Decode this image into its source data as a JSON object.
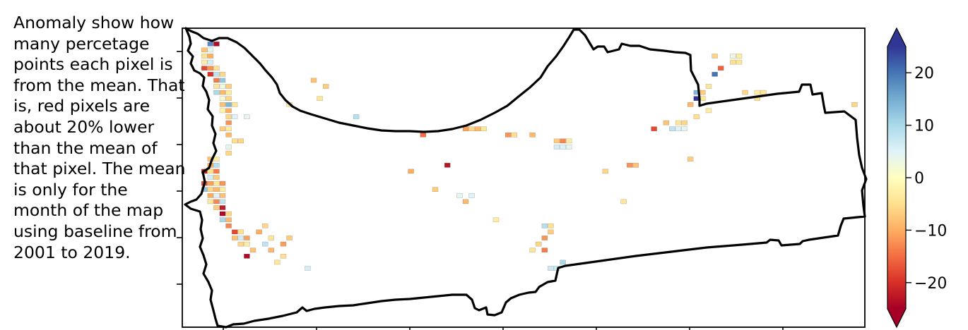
{
  "caption": "Anomaly show how many percetage points each pixel is from the mean. That is, red pixels are about 20% lower than the mean of that pixel. The mean is only for the month of the map using baseline from 2001 to 2019.",
  "chart_data": {
    "type": "heatmap",
    "title": "",
    "colormap": "RdYlBu",
    "colorbar": {
      "vmin": -25,
      "vmax": 25,
      "extend": "both",
      "ticks": [
        -20,
        -10,
        0,
        10,
        20
      ],
      "tick_labels": [
        "−20",
        "−10",
        "0",
        "10",
        "20"
      ]
    },
    "colors": {
      "boundary": "#000000",
      "low": "#a50026",
      "mid": "#ffffbf",
      "high": "#313695"
    },
    "x_ticks_count": 7,
    "y_ticks_count": 6,
    "anomaly_pixels": [
      {
        "col": 3,
        "row": 2,
        "value": 18
      },
      {
        "col": 4,
        "row": 2,
        "value": -24
      },
      {
        "col": 2,
        "row": 3,
        "value": -8
      },
      {
        "col": 3,
        "row": 3,
        "value": 4
      },
      {
        "col": 2,
        "row": 4,
        "value": -5
      },
      {
        "col": 3,
        "row": 4,
        "value": -10
      },
      {
        "col": 2,
        "row": 5,
        "value": -3
      },
      {
        "col": 3,
        "row": 5,
        "value": 6
      },
      {
        "col": 2,
        "row": 6,
        "value": -18
      },
      {
        "col": 3,
        "row": 6,
        "value": -12
      },
      {
        "col": 4,
        "row": 6,
        "value": -5
      },
      {
        "col": 3,
        "row": 7,
        "value": -20
      },
      {
        "col": 4,
        "row": 7,
        "value": 8
      },
      {
        "col": 5,
        "row": 7,
        "value": -6
      },
      {
        "col": 4,
        "row": 8,
        "value": -14
      },
      {
        "col": 5,
        "row": 8,
        "value": 12
      },
      {
        "col": 4,
        "row": 9,
        "value": -4
      },
      {
        "col": 5,
        "row": 9,
        "value": 3
      },
      {
        "col": 6,
        "row": 9,
        "value": -7
      },
      {
        "col": 4,
        "row": 10,
        "value": 10
      },
      {
        "col": 5,
        "row": 10,
        "value": -9
      },
      {
        "col": 6,
        "row": 10,
        "value": -3
      },
      {
        "col": 5,
        "row": 11,
        "value": 2
      },
      {
        "col": 6,
        "row": 11,
        "value": -6
      },
      {
        "col": 5,
        "row": 12,
        "value": -8
      },
      {
        "col": 6,
        "row": 12,
        "value": 14
      },
      {
        "col": 7,
        "row": 12,
        "value": -4
      },
      {
        "col": 5,
        "row": 13,
        "value": -2
      },
      {
        "col": 6,
        "row": 13,
        "value": -10
      },
      {
        "col": 6,
        "row": 14,
        "value": -6
      },
      {
        "col": 7,
        "row": 14,
        "value": 5
      },
      {
        "col": 6,
        "row": 15,
        "value": -12
      },
      {
        "col": 5,
        "row": 16,
        "value": -7
      },
      {
        "col": 6,
        "row": 16,
        "value": -3
      },
      {
        "col": 6,
        "row": 17,
        "value": -9
      },
      {
        "col": 7,
        "row": 18,
        "value": -5
      },
      {
        "col": 6,
        "row": 19,
        "value": 4
      },
      {
        "col": 6,
        "row": 20,
        "value": -6
      },
      {
        "col": 3,
        "row": 21,
        "value": -8
      },
      {
        "col": 4,
        "row": 21,
        "value": -3
      },
      {
        "col": 3,
        "row": 22,
        "value": -10
      },
      {
        "col": 4,
        "row": 22,
        "value": 9
      },
      {
        "col": 2,
        "row": 23,
        "value": -22
      },
      {
        "col": 3,
        "row": 23,
        "value": -5
      },
      {
        "col": 4,
        "row": 23,
        "value": -14
      },
      {
        "col": 3,
        "row": 24,
        "value": 6
      },
      {
        "col": 4,
        "row": 24,
        "value": -7
      },
      {
        "col": 2,
        "row": 25,
        "value": -18
      },
      {
        "col": 3,
        "row": 25,
        "value": -11
      },
      {
        "col": 4,
        "row": 25,
        "value": -4
      },
      {
        "col": 5,
        "row": 25,
        "value": -12
      },
      {
        "col": 2,
        "row": 26,
        "value": 12
      },
      {
        "col": 3,
        "row": 26,
        "value": -6
      },
      {
        "col": 4,
        "row": 26,
        "value": -9
      },
      {
        "col": 5,
        "row": 26,
        "value": -3
      },
      {
        "col": 3,
        "row": 27,
        "value": -10
      },
      {
        "col": 4,
        "row": 27,
        "value": 5
      },
      {
        "col": 5,
        "row": 27,
        "value": -8
      },
      {
        "col": 3,
        "row": 28,
        "value": -4
      },
      {
        "col": 4,
        "row": 28,
        "value": -13
      },
      {
        "col": 5,
        "row": 28,
        "value": 8
      },
      {
        "col": 4,
        "row": 29,
        "value": -7
      },
      {
        "col": 5,
        "row": 29,
        "value": -22
      },
      {
        "col": 5,
        "row": 30,
        "value": -24
      },
      {
        "col": 6,
        "row": 30,
        "value": -6
      },
      {
        "col": 5,
        "row": 31,
        "value": 10
      },
      {
        "col": 6,
        "row": 31,
        "value": -9
      },
      {
        "col": 6,
        "row": 32,
        "value": -13
      },
      {
        "col": 7,
        "row": 33,
        "value": -18
      },
      {
        "col": 8,
        "row": 33,
        "value": -5
      },
      {
        "col": 7,
        "row": 34,
        "value": -8
      },
      {
        "col": 8,
        "row": 34,
        "value": 6
      },
      {
        "col": 9,
        "row": 34,
        "value": -11
      },
      {
        "col": 8,
        "row": 35,
        "value": -6
      },
      {
        "col": 9,
        "row": 35,
        "value": -3
      },
      {
        "col": 9,
        "row": 37,
        "value": -24
      },
      {
        "col": 10,
        "row": 36,
        "value": -8
      },
      {
        "col": 12,
        "row": 32,
        "value": -6
      },
      {
        "col": 11,
        "row": 33,
        "value": -10
      },
      {
        "col": 13,
        "row": 34,
        "value": -4
      },
      {
        "col": 12,
        "row": 35,
        "value": 8
      },
      {
        "col": 13,
        "row": 36,
        "value": -9
      },
      {
        "col": 15,
        "row": 37,
        "value": -5
      },
      {
        "col": 16,
        "row": 34,
        "value": -7
      },
      {
        "col": 15,
        "row": 35,
        "value": -11
      },
      {
        "col": 14,
        "row": 38,
        "value": -4
      },
      {
        "col": 19,
        "row": 39,
        "value": 6
      },
      {
        "col": 20,
        "row": 8,
        "value": -8
      },
      {
        "col": 27,
        "row": 14,
        "value": 9
      },
      {
        "col": 38,
        "row": 17,
        "value": -15
      },
      {
        "col": 45,
        "row": 16,
        "value": -11
      },
      {
        "col": 46,
        "row": 16,
        "value": -6
      },
      {
        "col": 47,
        "row": 16,
        "value": -9
      },
      {
        "col": 48,
        "row": 16,
        "value": -4
      },
      {
        "col": 52,
        "row": 17,
        "value": -12
      },
      {
        "col": 53,
        "row": 17,
        "value": -5
      },
      {
        "col": 56,
        "row": 17,
        "value": -9
      },
      {
        "col": 60,
        "row": 18,
        "value": -7
      },
      {
        "col": 61,
        "row": 18,
        "value": -13
      },
      {
        "col": 62,
        "row": 18,
        "value": -3
      },
      {
        "col": 60,
        "row": 19,
        "value": 6
      },
      {
        "col": 61,
        "row": 19,
        "value": 5
      },
      {
        "col": 62,
        "row": 19,
        "value": 4
      },
      {
        "col": 42,
        "row": 22,
        "value": -23
      },
      {
        "col": 36,
        "row": 23,
        "value": -10
      },
      {
        "col": 72,
        "row": 22,
        "value": -12
      },
      {
        "col": 73,
        "row": 22,
        "value": -8
      },
      {
        "col": 68,
        "row": 23,
        "value": -6
      },
      {
        "col": 82,
        "row": 21,
        "value": -7
      },
      {
        "col": 76,
        "row": 16,
        "value": -18
      },
      {
        "col": 78,
        "row": 15,
        "value": -8
      },
      {
        "col": 80,
        "row": 15,
        "value": -4
      },
      {
        "col": 81,
        "row": 15,
        "value": -6
      },
      {
        "col": 79,
        "row": 16,
        "value": 8
      },
      {
        "col": 80,
        "row": 16,
        "value": 5
      },
      {
        "col": 81,
        "row": 16,
        "value": 4
      },
      {
        "col": 83,
        "row": 14,
        "value": -5
      },
      {
        "col": 85,
        "row": 13,
        "value": -3
      },
      {
        "col": 82,
        "row": 12,
        "value": -9
      },
      {
        "col": 83,
        "row": 11,
        "value": 25
      },
      {
        "col": 84,
        "row": 11,
        "value": -4
      },
      {
        "col": 83,
        "row": 10,
        "value": 14
      },
      {
        "col": 84,
        "row": 10,
        "value": -7
      },
      {
        "col": 85,
        "row": 9,
        "value": -4
      },
      {
        "col": 86,
        "row": 7,
        "value": 20
      },
      {
        "col": 87,
        "row": 6,
        "value": -16
      },
      {
        "col": 86,
        "row": 4,
        "value": -6
      },
      {
        "col": 89,
        "row": 4,
        "value": 3
      },
      {
        "col": 90,
        "row": 4,
        "value": -3
      },
      {
        "col": 89,
        "row": 5,
        "value": -5
      },
      {
        "col": 90,
        "row": 5,
        "value": -4
      },
      {
        "col": 91,
        "row": 10,
        "value": -6
      },
      {
        "col": 93,
        "row": 10,
        "value": -3
      },
      {
        "col": 93,
        "row": 11,
        "value": -5
      },
      {
        "col": 94,
        "row": 10,
        "value": -4
      },
      {
        "col": 109,
        "row": 12,
        "value": -6
      },
      {
        "col": 40,
        "row": 26,
        "value": -7
      },
      {
        "col": 44,
        "row": 27,
        "value": 4
      },
      {
        "col": 45,
        "row": 28,
        "value": -9
      },
      {
        "col": 46,
        "row": 27,
        "value": 5
      },
      {
        "col": 50,
        "row": 31,
        "value": -3
      },
      {
        "col": 58,
        "row": 32,
        "value": 9
      },
      {
        "col": 59,
        "row": 32,
        "value": -5
      },
      {
        "col": 59,
        "row": 33,
        "value": -7
      },
      {
        "col": 58,
        "row": 34,
        "value": -12
      },
      {
        "col": 57,
        "row": 35,
        "value": -6
      },
      {
        "col": 56,
        "row": 36,
        "value": -4
      },
      {
        "col": 58,
        "row": 36,
        "value": -14
      },
      {
        "col": 61,
        "row": 38,
        "value": 10
      },
      {
        "col": 59,
        "row": 39,
        "value": 7
      },
      {
        "col": 60,
        "row": 39,
        "value": 6
      },
      {
        "col": 71,
        "row": 28,
        "value": -4
      },
      {
        "col": 16,
        "row": 12,
        "value": -3
      },
      {
        "col": 21,
        "row": 11,
        "value": -4
      },
      {
        "col": 22,
        "row": 9,
        "value": -7
      },
      {
        "col": 9,
        "row": 14,
        "value": 4
      },
      {
        "col": 8,
        "row": 18,
        "value": -6
      }
    ]
  }
}
